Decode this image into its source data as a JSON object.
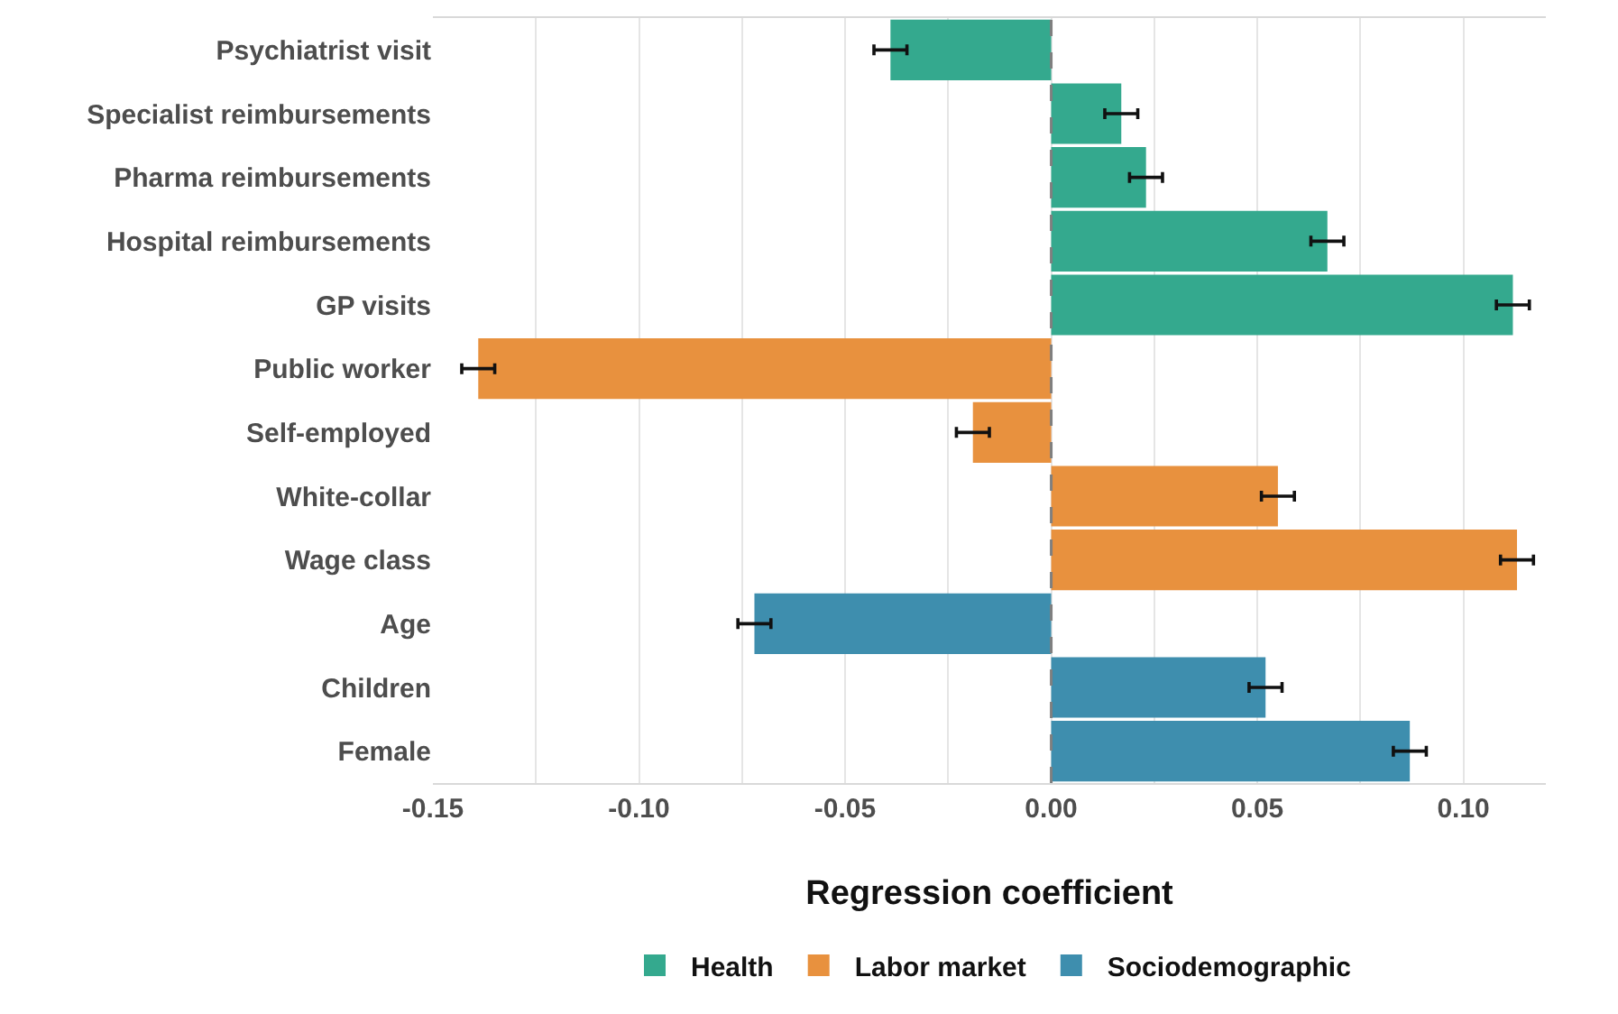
{
  "chart_data": {
    "type": "bar",
    "orientation": "horizontal",
    "xlabel": "Regression coefficient",
    "categories": [
      "Psychiatrist visit",
      "Specialist reimbursements",
      "Pharma reimbursements",
      "Hospital reimbursements",
      "GP visits",
      "Public worker",
      "Self-employed",
      "White-collar",
      "Wage class",
      "Age",
      "Children",
      "Female"
    ],
    "series": [
      {
        "name": "Health",
        "color": "#34a98e",
        "values": [
          -0.039,
          0.017,
          0.023,
          0.067,
          0.112,
          null,
          null,
          null,
          null,
          null,
          null,
          null
        ],
        "errors": [
          0.004,
          0.004,
          0.004,
          0.004,
          0.004,
          null,
          null,
          null,
          null,
          null,
          null,
          null
        ]
      },
      {
        "name": "Labor market",
        "color": "#e8913e",
        "values": [
          null,
          null,
          null,
          null,
          null,
          -0.139,
          -0.019,
          0.055,
          0.113,
          null,
          null,
          null
        ],
        "errors": [
          null,
          null,
          null,
          null,
          null,
          0.004,
          0.004,
          0.004,
          0.004,
          null,
          null,
          null
        ]
      },
      {
        "name": "Sociodemographic",
        "color": "#3e8eae",
        "values": [
          null,
          null,
          null,
          null,
          null,
          null,
          null,
          null,
          null,
          -0.072,
          0.052,
          0.087
        ],
        "errors": [
          null,
          null,
          null,
          null,
          null,
          null,
          null,
          null,
          null,
          0.004,
          0.004,
          0.004
        ]
      }
    ],
    "xlim": [
      -0.15,
      0.12
    ],
    "xticks": [
      {
        "value": -0.15,
        "label": "-0.15"
      },
      {
        "value": -0.125,
        "label": null
      },
      {
        "value": -0.1,
        "label": "-0.10"
      },
      {
        "value": -0.075,
        "label": null
      },
      {
        "value": -0.05,
        "label": "-0.05"
      },
      {
        "value": -0.025,
        "label": null
      },
      {
        "value": 0,
        "label": "0.00"
      },
      {
        "value": 0.025,
        "label": null
      },
      {
        "value": 0.05,
        "label": "0.05"
      },
      {
        "value": 0.075,
        "label": null
      },
      {
        "value": 0.1,
        "label": "0.10"
      }
    ],
    "ref_lines": [
      {
        "axis": "x",
        "value": 0,
        "color": "#7f7f7f",
        "line_style": "dashed"
      }
    ],
    "grid": "x",
    "legend": "bottom"
  }
}
